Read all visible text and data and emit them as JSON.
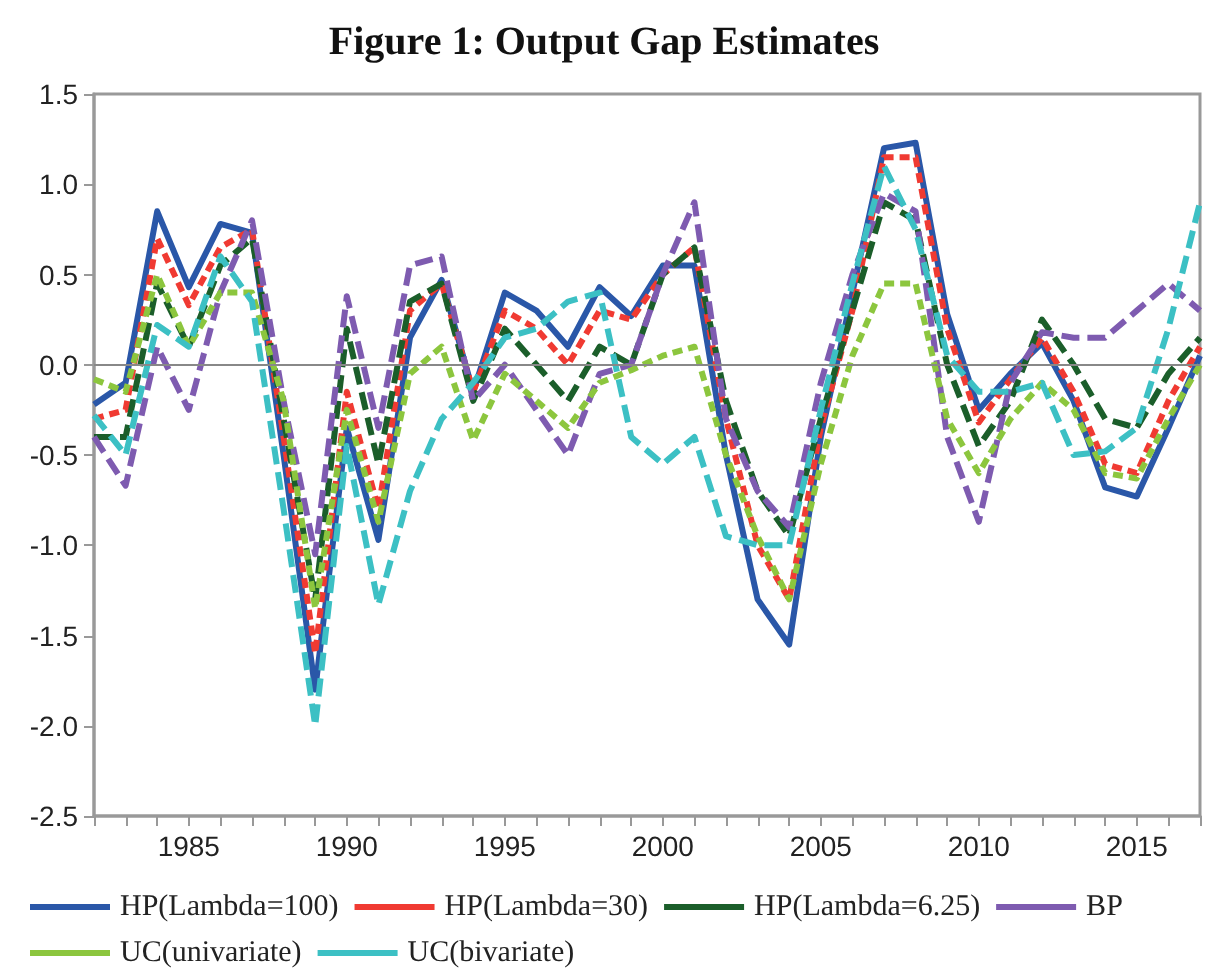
{
  "chart_data": {
    "type": "line",
    "title": "Figure 1: Output Gap Estimates",
    "x": [
      1982,
      1983,
      1984,
      1985,
      1986,
      1987,
      1988,
      1989,
      1990,
      1991,
      1992,
      1993,
      1994,
      1995,
      1996,
      1997,
      1998,
      1999,
      2000,
      2001,
      2002,
      2003,
      2004,
      2005,
      2006,
      2007,
      2008,
      2009,
      2010,
      2011,
      2012,
      2013,
      2014,
      2015,
      2016,
      2017
    ],
    "series": [
      {
        "name": "HP(Lambda=100)",
        "color": "#2a57a8",
        "line_style": "solid",
        "values": [
          -0.22,
          -0.1,
          0.85,
          0.43,
          0.78,
          0.73,
          -0.5,
          -1.8,
          -0.35,
          -0.97,
          0.15,
          0.47,
          -0.15,
          0.4,
          0.3,
          0.1,
          0.43,
          0.27,
          0.55,
          0.55,
          -0.5,
          -1.3,
          -1.55,
          -0.4,
          0.4,
          1.2,
          1.23,
          0.28,
          -0.25,
          -0.05,
          0.12,
          -0.2,
          -0.68,
          -0.73,
          -0.35,
          0.05
        ]
      },
      {
        "name": "HP(Lambda=30)",
        "color": "#f03a32",
        "line_style": "dotted",
        "values": [
          -0.3,
          -0.25,
          0.7,
          0.33,
          0.65,
          0.75,
          -0.4,
          -1.6,
          -0.15,
          -0.8,
          0.3,
          0.45,
          -0.15,
          0.3,
          0.2,
          0.0,
          0.3,
          0.25,
          0.5,
          0.65,
          -0.3,
          -1.0,
          -1.3,
          -0.35,
          0.3,
          1.15,
          1.15,
          0.2,
          -0.32,
          -0.08,
          0.15,
          -0.15,
          -0.55,
          -0.6,
          -0.2,
          0.1
        ]
      },
      {
        "name": "HP(Lambda=6.25)",
        "color": "#1b5e2a",
        "line_style": "dashed",
        "values": [
          -0.4,
          -0.4,
          0.45,
          0.1,
          0.55,
          0.7,
          -0.3,
          -1.3,
          0.2,
          -0.55,
          0.35,
          0.45,
          -0.2,
          0.2,
          0.0,
          -0.2,
          0.1,
          0.0,
          0.5,
          0.65,
          -0.2,
          -0.7,
          -0.95,
          -0.3,
          0.3,
          0.9,
          0.8,
          0.0,
          -0.45,
          -0.2,
          0.25,
          0.0,
          -0.3,
          -0.35,
          -0.05,
          0.15
        ]
      },
      {
        "name": "BP",
        "color": "#7e5bb0",
        "line_style": "dashed",
        "values": [
          -0.4,
          -0.67,
          0.1,
          -0.25,
          0.4,
          0.8,
          -0.2,
          -1.05,
          0.38,
          -0.35,
          0.55,
          0.6,
          -0.2,
          0.0,
          -0.25,
          -0.5,
          -0.05,
          0.0,
          0.5,
          0.9,
          -0.3,
          -0.7,
          -0.9,
          -0.1,
          0.5,
          0.95,
          0.85,
          -0.4,
          -0.87,
          -0.1,
          0.18,
          0.15,
          0.15,
          0.3,
          0.45,
          0.3
        ]
      },
      {
        "name": "UC(univariate)",
        "color": "#8cc63e",
        "line_style": "dotted",
        "values": [
          -0.08,
          -0.15,
          0.5,
          0.1,
          0.4,
          0.4,
          -0.2,
          -1.35,
          -0.25,
          -0.87,
          -0.05,
          0.1,
          -0.42,
          -0.05,
          -0.2,
          -0.35,
          -0.1,
          -0.03,
          0.05,
          0.1,
          -0.5,
          -0.95,
          -1.3,
          -0.55,
          0.05,
          0.45,
          0.45,
          -0.3,
          -0.6,
          -0.3,
          -0.1,
          -0.25,
          -0.6,
          -0.63,
          -0.3,
          0.0
        ]
      },
      {
        "name": "UC(bivariate)",
        "color": "#3cc0c4",
        "line_style": "dashed",
        "values": [
          -0.28,
          -0.5,
          0.22,
          0.1,
          0.6,
          0.35,
          -0.8,
          -2.0,
          -0.45,
          -1.33,
          -0.7,
          -0.3,
          -0.1,
          0.15,
          0.2,
          0.35,
          0.4,
          -0.4,
          -0.55,
          -0.4,
          -0.95,
          -1.0,
          -1.0,
          -0.25,
          0.45,
          1.1,
          0.75,
          0.05,
          -0.15,
          -0.15,
          -0.1,
          -0.5,
          -0.48,
          -0.35,
          0.2,
          0.9
        ]
      }
    ],
    "xlim": [
      1982,
      2017
    ],
    "xticks": [
      {
        "value": 1982,
        "label": null
      },
      {
        "value": 1983,
        "label": null
      },
      {
        "value": 1984,
        "label": null
      },
      1985,
      {
        "value": 1986,
        "label": null
      },
      {
        "value": 1987,
        "label": null
      },
      {
        "value": 1988,
        "label": null
      },
      {
        "value": 1989,
        "label": null
      },
      1990,
      {
        "value": 1991,
        "label": null
      },
      {
        "value": 1992,
        "label": null
      },
      {
        "value": 1993,
        "label": null
      },
      {
        "value": 1994,
        "label": null
      },
      1995,
      {
        "value": 1996,
        "label": null
      },
      {
        "value": 1997,
        "label": null
      },
      {
        "value": 1998,
        "label": null
      },
      {
        "value": 1999,
        "label": null
      },
      2000,
      {
        "value": 2001,
        "label": null
      },
      {
        "value": 2002,
        "label": null
      },
      {
        "value": 2003,
        "label": null
      },
      {
        "value": 2004,
        "label": null
      },
      2005,
      {
        "value": 2006,
        "label": null
      },
      {
        "value": 2007,
        "label": null
      },
      {
        "value": 2008,
        "label": null
      },
      {
        "value": 2009,
        "label": null
      },
      2010,
      {
        "value": 2011,
        "label": null
      },
      {
        "value": 2012,
        "label": null
      },
      {
        "value": 2013,
        "label": null
      },
      {
        "value": 2014,
        "label": null
      },
      2015,
      {
        "value": 2016,
        "label": null
      },
      {
        "value": 2017,
        "label": null
      }
    ],
    "ylim": [
      -2.5,
      1.5
    ],
    "yticks": [
      {
        "value": -2.5,
        "label": "-2.5"
      },
      {
        "value": -2.0,
        "label": "-2.0"
      },
      {
        "value": -1.5,
        "label": "-1.5"
      },
      {
        "value": -1.0,
        "label": "-1.0"
      },
      {
        "value": -0.5,
        "label": "-0.5"
      },
      {
        "value": 0.0,
        "label": "0.0"
      },
      {
        "value": 0.5,
        "label": "0.5"
      },
      {
        "value": 1.0,
        "label": "1.0"
      },
      {
        "value": 1.5,
        "label": "1.5"
      }
    ],
    "ref_lines": [
      {
        "axis": "y",
        "value": 0,
        "color": "#888888"
      }
    ],
    "grid": false,
    "legend": "bottom",
    "marker": "none"
  }
}
